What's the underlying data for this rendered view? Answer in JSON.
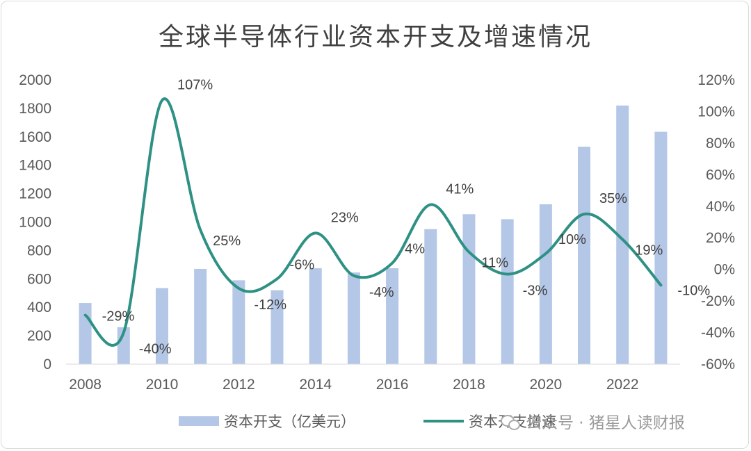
{
  "title": "全球半导体行业资本开支及增速情况",
  "legend": {
    "bar_label": "资本开支（亿美元）",
    "line_label": "资本开支增速"
  },
  "watermark": "公众号 · 猪星人读财报",
  "colors": {
    "bar": "#b4c7e7",
    "line": "#2e9184",
    "text": "#404040"
  },
  "chart_data": {
    "type": "bar+line",
    "title": "全球半导体行业资本开支及增速情况",
    "x": [
      2008,
      2009,
      2010,
      2011,
      2012,
      2013,
      2014,
      2015,
      2016,
      2017,
      2018,
      2019,
      2020,
      2021,
      2022,
      2023
    ],
    "x_ticks": [
      "2008",
      "2010",
      "2012",
      "2014",
      "2016",
      "2018",
      "2020",
      "2022"
    ],
    "y_left": {
      "min": 0,
      "max": 2000,
      "ticks": [
        "0",
        "200",
        "400",
        "600",
        "800",
        "1000",
        "1200",
        "1400",
        "1600",
        "1800",
        "2000"
      ]
    },
    "y_right": {
      "min": -60,
      "max": 120,
      "ticks": [
        "-60%",
        "-40%",
        "-20%",
        "0%",
        "20%",
        "40%",
        "60%",
        "80%",
        "100%",
        "120%"
      ]
    },
    "series": [
      {
        "name": "资本开支（亿美元）",
        "type": "bar",
        "axis": "left",
        "values": [
          430,
          260,
          535,
          670,
          590,
          520,
          675,
          645,
          675,
          950,
          1055,
          1020,
          1125,
          1530,
          1820,
          1635
        ]
      },
      {
        "name": "资本开支增速",
        "type": "line",
        "axis": "right",
        "values": [
          -29,
          -40,
          107,
          25,
          -12,
          -6,
          23,
          -4,
          4,
          41,
          11,
          -3,
          10,
          35,
          19,
          -10
        ],
        "labels": [
          "-29%",
          "-40%",
          "107%",
          "25%",
          "-12%",
          "-6%",
          "23%",
          "-4%",
          "4%",
          "41%",
          "11%",
          "-3%",
          "10%",
          "35%",
          "19%",
          "-10%"
        ]
      }
    ],
    "grid": false,
    "legend_position": "bottom"
  }
}
